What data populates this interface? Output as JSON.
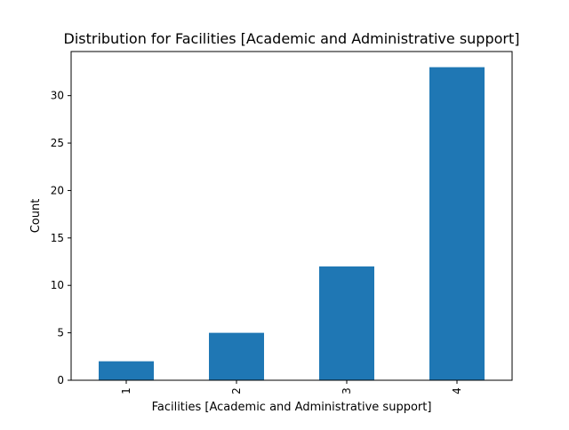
{
  "chart_data": {
    "type": "bar",
    "title": "Distribution for Facilities [Academic and Administrative support]",
    "xlabel": "Facilities [Academic and Administrative support]",
    "ylabel": "Count",
    "categories": [
      "1",
      "2",
      "3",
      "4"
    ],
    "values": [
      2,
      5,
      12,
      33
    ],
    "ylim": [
      0,
      34.65
    ],
    "yticks": [
      0,
      5,
      10,
      15,
      20,
      25,
      30
    ],
    "grid": false,
    "legend": "none",
    "bar_color": "#1f77b4"
  }
}
